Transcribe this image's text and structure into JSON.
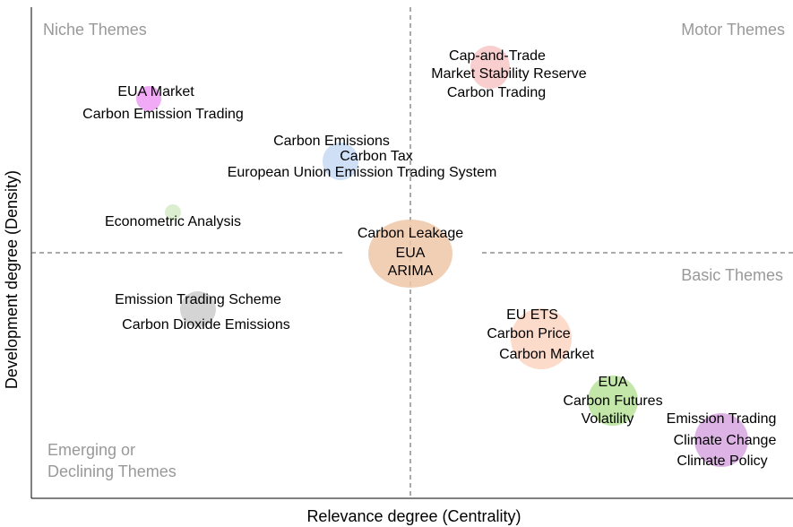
{
  "axes": {
    "x_title": "Relevance degree (Centrality)",
    "y_title": "Development degree (Density)"
  },
  "quadrants": {
    "top_left": "Niche Themes",
    "top_right": "Motor Themes",
    "bottom_right": "Basic Themes",
    "bottom_left": [
      "Emerging or",
      "Declining Themes"
    ]
  },
  "nodes": [
    {
      "labels": [
        "EUA Market",
        "Carbon Emission Trading"
      ]
    },
    {
      "labels": [
        "Cap-and-Trade",
        "Market Stability Reserve",
        "Carbon Trading"
      ]
    },
    {
      "labels": [
        "Carbon Emissions",
        "Carbon Tax",
        "European Union Emission Trading System"
      ]
    },
    {
      "labels": [
        "Econometric Analysis"
      ]
    },
    {
      "labels": [
        "Carbon Leakage",
        "EUA",
        "ARIMA"
      ]
    },
    {
      "labels": [
        "Emission Trading Scheme",
        "Carbon Dioxide Emissions"
      ]
    },
    {
      "labels": [
        "EU ETS",
        "Carbon Price",
        "Carbon Market"
      ]
    },
    {
      "labels": [
        "EUA",
        "Carbon Futures",
        "Volatility"
      ]
    },
    {
      "labels": [
        "Emission Trading",
        "Climate Change",
        "Climate Policy"
      ]
    }
  ]
}
